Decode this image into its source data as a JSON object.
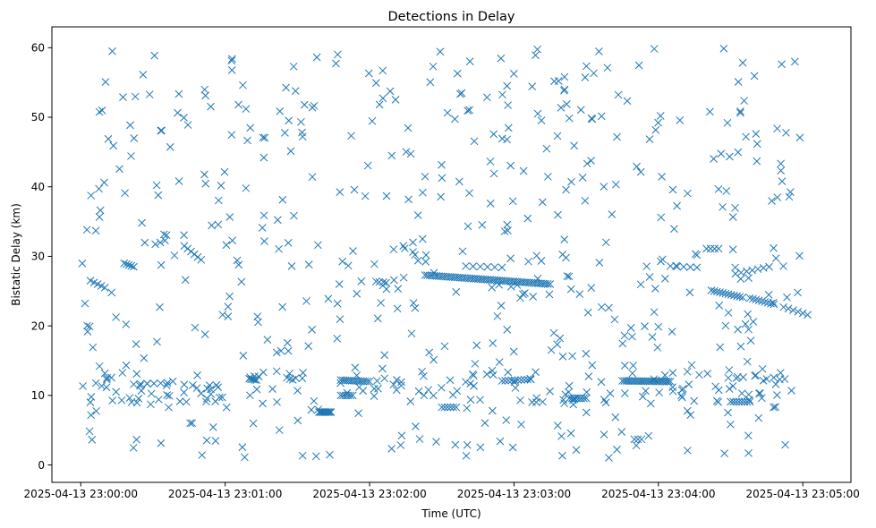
{
  "chart_data": {
    "type": "scatter",
    "title": "Detections in Delay",
    "xlabel": "Time (UTC)",
    "ylabel": "Bistatic Delay (km)",
    "x_tick_labels": [
      "2025-04-13 23:00:00",
      "2025-04-13 23:01:00",
      "2025-04-13 23:02:00",
      "2025-04-13 23:03:00",
      "2025-04-13 23:04:00",
      "2025-04-13 23:05:00"
    ],
    "y_ticks": [
      0,
      10,
      20,
      30,
      40,
      50,
      60
    ],
    "xlim": [
      "2025-04-13 22:59:48",
      "2025-04-13 23:05:20"
    ],
    "ylim": [
      -2.5,
      63
    ],
    "grid": false,
    "marker": "x",
    "marker_color": "#1f77b4",
    "series": [
      {
        "tracks": [
          {
            "t0": "2025-04-13 23:02:23",
            "t1": "2025-04-13 23:03:15",
            "y0": 27.3,
            "y1": 26.0,
            "n": 55
          },
          {
            "t0": "2025-04-13 23:01:10",
            "t1": "2025-04-13 23:01:13",
            "y0": 12.4,
            "y1": 12.2,
            "n": 5
          },
          {
            "t0": "2025-04-13 23:01:39",
            "t1": "2025-04-13 23:01:44",
            "y0": 7.6,
            "y1": 7.6,
            "n": 10
          },
          {
            "t0": "2025-04-13 23:01:48",
            "t1": "2025-04-13 23:02:00",
            "y0": 12.2,
            "y1": 12.0,
            "n": 14
          },
          {
            "t0": "2025-04-13 23:01:48",
            "t1": "2025-04-13 23:01:53",
            "y0": 10.0,
            "y1": 10.0,
            "n": 6
          },
          {
            "t0": "2025-04-13 23:02:04",
            "t1": "2025-04-13 23:02:07",
            "y0": 26.3,
            "y1": 25.3,
            "n": 3
          },
          {
            "t0": "2025-04-13 23:02:30",
            "t1": "2025-04-13 23:02:36",
            "y0": 8.3,
            "y1": 8.3,
            "n": 6
          },
          {
            "t0": "2025-04-13 23:02:55",
            "t1": "2025-04-13 23:03:07",
            "y0": 12.1,
            "y1": 12.3,
            "n": 10
          },
          {
            "t0": "2025-04-13 23:03:23",
            "t1": "2025-04-13 23:03:30",
            "y0": 9.6,
            "y1": 9.6,
            "n": 8
          },
          {
            "t0": "2025-04-13 23:03:45",
            "t1": "2025-04-13 23:04:05",
            "y0": 12.1,
            "y1": 12.0,
            "n": 26
          },
          {
            "t0": "2025-04-13 23:03:50",
            "t1": "2025-04-13 23:03:53",
            "y0": 3.7,
            "y1": 3.7,
            "n": 3
          },
          {
            "t0": "2025-04-13 23:04:05",
            "t1": "2025-04-13 23:04:16",
            "y0": 28.6,
            "y1": 28.4,
            "n": 5
          },
          {
            "t0": "2025-04-13 23:04:20",
            "t1": "2025-04-13 23:04:25",
            "y0": 31.1,
            "y1": 31.1,
            "n": 4
          },
          {
            "t0": "2025-04-13 23:04:22",
            "t1": "2025-04-13 23:04:35",
            "y0": 25.1,
            "y1": 24.1,
            "n": 12
          },
          {
            "t0": "2025-04-13 23:04:30",
            "t1": "2025-04-13 23:04:38",
            "y0": 9.1,
            "y1": 9.1,
            "n": 8
          },
          {
            "t0": "2025-04-13 23:04:38",
            "t1": "2025-04-13 23:04:48",
            "y0": 24.0,
            "y1": 23.1,
            "n": 9
          },
          {
            "t0": "2025-04-13 23:04:52",
            "t1": "2025-04-13 23:05:02",
            "y0": 22.7,
            "y1": 21.6,
            "n": 6
          },
          {
            "t0": "2025-04-13 23:04:32",
            "t1": "2025-04-13 23:04:46",
            "y0": 27.5,
            "y1": 28.5,
            "n": 7
          },
          {
            "t0": "2025-04-13 23:00:04",
            "t1": "2025-04-13 23:00:10",
            "y0": 26.5,
            "y1": 25.5,
            "n": 5
          },
          {
            "t0": "2025-04-13 23:00:18",
            "t1": "2025-04-13 23:00:22",
            "y0": 29.0,
            "y1": 28.5,
            "n": 5
          },
          {
            "t0": "2025-04-13 23:00:43",
            "t1": "2025-04-13 23:00:50",
            "y0": 31.5,
            "y1": 29.5,
            "n": 6
          },
          {
            "t0": "2025-04-13 23:00:22",
            "t1": "2025-04-13 23:00:36",
            "y0": 11.6,
            "y1": 11.8,
            "n": 6
          },
          {
            "t0": "2025-04-13 23:02:40",
            "t1": "2025-04-13 23:02:55",
            "y0": 28.6,
            "y1": 28.4,
            "n": 6
          },
          {
            "t0": "2025-04-13 23:02:10",
            "t1": "2025-04-13 23:02:22",
            "y0": 31.0,
            "y1": 32.5,
            "n": 4
          }
        ]
      }
    ]
  }
}
